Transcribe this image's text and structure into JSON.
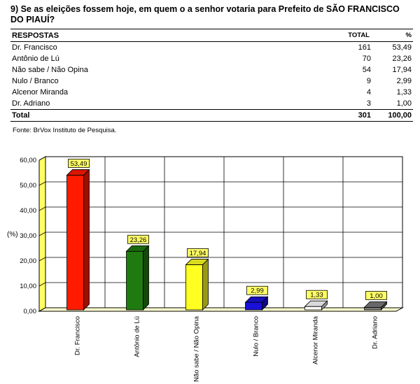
{
  "question": "9) Se as eleições fossem hoje, em quem o a senhor votaria para Prefeito de SÃO FRANCISCO DO PIAUÍ?",
  "table": {
    "headers": {
      "label": "RESPOSTAS",
      "total": "TOTAL",
      "percent": "%"
    },
    "rows": [
      {
        "label": "Dr. Francisco",
        "total": "161",
        "percent": "53,49"
      },
      {
        "label": "Antônio de Lú",
        "total": "70",
        "percent": "23,26"
      },
      {
        "label": "Não sabe / Não Opina",
        "total": "54",
        "percent": "17,94"
      },
      {
        "label": "Nulo / Branco",
        "total": "9",
        "percent": "2,99"
      },
      {
        "label": "Alcenor Miranda",
        "total": "4",
        "percent": "1,33"
      },
      {
        "label": "Dr. Adriano",
        "total": "3",
        "percent": "1,00"
      }
    ],
    "total_row": {
      "label": "Total",
      "total": "301",
      "percent": "100,00"
    }
  },
  "source": "Fonte: BrVox Instituto de Pesquisa.",
  "chart_data": {
    "type": "bar",
    "categories": [
      "Dr. Francisco",
      "Antônio de Lú",
      "Não sabe / Não Opina",
      "Nulo / Branco",
      "Alcenor Miranda",
      "Dr. Adriano"
    ],
    "values": [
      53.49,
      23.26,
      17.94,
      2.99,
      1.33,
      1.0
    ],
    "value_labels": [
      "53,49",
      "23,26",
      "17,94",
      "2,99",
      "1,33",
      "1,00"
    ],
    "colors": [
      "#ff1a00",
      "#1f7a0f",
      "#ffff22",
      "#1a10d8",
      "#ffffff",
      "#7a7a7a"
    ],
    "ylabel": "(%)",
    "ylim": [
      0,
      60
    ],
    "yticks": [
      "0,00",
      "10,00",
      "20,00",
      "30,00",
      "40,00",
      "50,00",
      "60,00"
    ],
    "grid": true,
    "three_d": true
  }
}
